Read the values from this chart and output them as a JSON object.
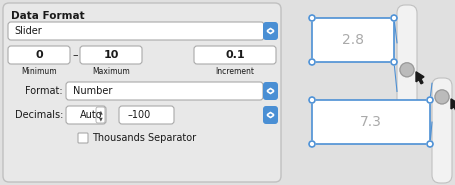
{
  "bg_color": "#e0e0e0",
  "panel_bg": "#e8e8e8",
  "white": "#ffffff",
  "blue_btn": "#4a8fd4",
  "border_color": "#aaaaaa",
  "text_dark": "#1a1a1a",
  "text_gray": "#aaaaaa",
  "blue_outline": "#4d90d4",
  "slider_track_bg": "#f2f2f2",
  "slider_track_border": "#c0c0c0",
  "slider_thumb_color": "#bbbbbb",
  "slider_thumb_border": "#999999",
  "title": "Data Format",
  "dropdown_label": "Slider",
  "min_val": "0",
  "max_val": "10",
  "increment_val": "0.1",
  "min_label": "Minimum",
  "max_label": "Maximum",
  "inc_label": "Increment",
  "format_label": "Format:",
  "format_val": "Number",
  "decimals_label": "Decimals:",
  "decimals_val": "Auto",
  "decimals_val2": "–100",
  "thousands_label": "Thousands Separator",
  "cell_val1": "2.8",
  "cell_val2": "7.3"
}
